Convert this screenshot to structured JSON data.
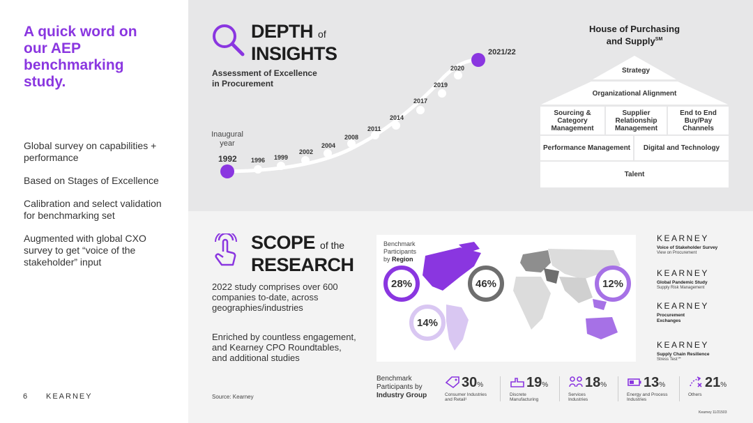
{
  "left": {
    "title": "A quick word on\nour AEP\nbenchmarking\nstudy.",
    "bullets": [
      "Global survey on capabilities + performance",
      "Based on Stages of Excellence",
      "Calibration and select validation for benchmarking set",
      "Augmented with global CXO survey to get “voice of the stakeholder” input"
    ],
    "page_number": "6",
    "brand": "KEARNEY"
  },
  "depth": {
    "heading_word1": "DEPTH",
    "heading_of": "of",
    "heading_word2": "INSIGHTS",
    "subtitle": "Assessment of Excellence\nin Procurement",
    "inaugural": "Inaugural\nyear",
    "years": [
      "1992",
      "1996",
      "1999",
      "2002",
      "2004",
      "2008",
      "2011",
      "2014",
      "2017",
      "2019",
      "2020",
      "2021/22"
    ]
  },
  "house": {
    "title": "House of Purchasing",
    "title_line2": "and Supply",
    "title_sup": "SM",
    "strategy": "Strategy",
    "org_alignment": "Organizational Alignment",
    "sourcing": "Sourcing & Category Management",
    "supplier": "Supplier Relationship Management",
    "end_to_end": "End to End Buy/Pay Channels",
    "performance": "Performance Management",
    "digital": "Digital and Technology",
    "talent": "Talent"
  },
  "scope": {
    "heading_word1": "SCOPE",
    "heading_of": "of the",
    "heading_word2": "RESEARCH",
    "text1": "2022 study comprises over 600 companies to-date, across geographies/industries",
    "text2": "Enriched by countless engagement, and Kearney CPO Roundtables, and additional studies",
    "source": "Source: Kearney"
  },
  "map": {
    "label_line1": "Benchmark",
    "label_line2": "Participants",
    "label_by": "by",
    "label_bold": "Region",
    "americas_north": "28%",
    "europe": "46%",
    "asia_pacific": "12%",
    "latin_america": "14%"
  },
  "kearney_studies": [
    {
      "logo": "KEARNEY",
      "title": "Voice of Stakeholder Survey",
      "sub": "View on Procurement"
    },
    {
      "logo": "KEARNEY",
      "title": "Global Pandemic Study",
      "sub": "Supply Risk Management"
    },
    {
      "logo": "KEARNEY",
      "title": "Procurement Exchanges",
      "sub": ""
    },
    {
      "logo": "KEARNEY",
      "title": "Supply Chain Resilience",
      "sub": "Stress Test℠"
    }
  ],
  "industry": {
    "label_line1": "Benchmark",
    "label_line2": "Participants by",
    "label_bold": "Industry Group",
    "items": [
      {
        "value": "30",
        "unit": "%",
        "caption": "Consumer Industries\nand Retail¹"
      },
      {
        "value": "19",
        "unit": "%",
        "caption": "Discrete\nManufacturing"
      },
      {
        "value": "18",
        "unit": "%",
        "caption": "Services\nIndustries"
      },
      {
        "value": "13",
        "unit": "%",
        "caption": "Energy and Process\nIndustries"
      },
      {
        "value": "21",
        "unit": "%",
        "caption": "Others"
      }
    ]
  },
  "footer_id": "Kearney 11/21503",
  "colors": {
    "accent": "#8a36e0",
    "accent_light": "#c9a6f0",
    "grey_dark": "#6e6e6e",
    "panel_top": "#e7e7e8",
    "panel_bottom": "#f3f3f3"
  }
}
